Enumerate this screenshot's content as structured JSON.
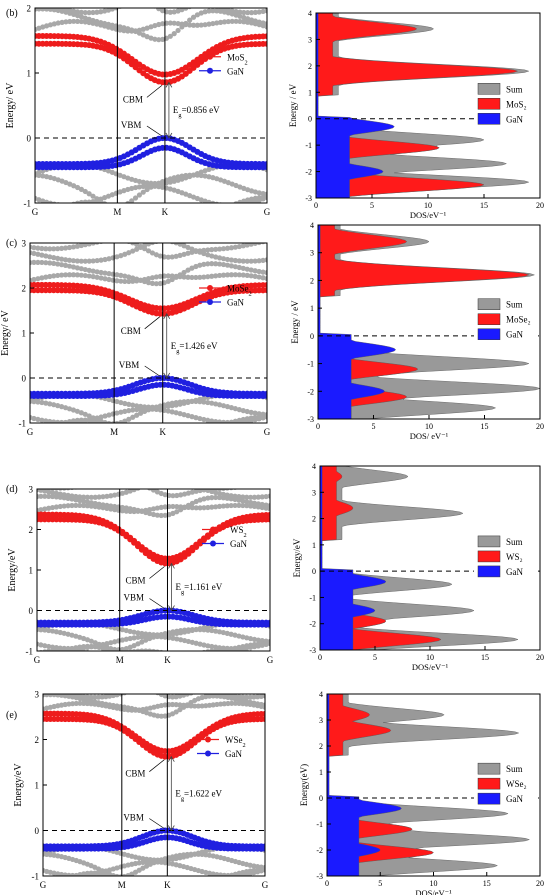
{
  "panels": [
    {
      "label": "(b)",
      "material": "MoS2",
      "band": {
        "ylim": [
          -1,
          2
        ],
        "yticks": [
          "-1",
          "0",
          "1",
          "2"
        ],
        "ylabel": "Energy/ eV",
        "kpoints": [
          "G",
          "M",
          "K",
          "G"
        ],
        "legend": [
          {
            "base": "MoS",
            "sub": "2"
          },
          {
            "base": "GaN",
            "sub": ""
          }
        ],
        "cbm_label": "CBM",
        "vbm_label": "VBM",
        "gap_label": {
          "pre": "E",
          "sub": "g",
          "post": "=0.856 eV"
        },
        "cb_min": 0.856,
        "cb_edge": 1.45,
        "vb_max": 0.0,
        "vb_low": -0.4
      },
      "dos": {
        "ylim": [
          -3,
          4
        ],
        "yticks": [
          "-3",
          "-2",
          "-1",
          "0",
          "1",
          "2",
          "3",
          "4"
        ],
        "xlim": [
          0,
          20
        ],
        "xticks": [
          "0",
          "5",
          "10",
          "15",
          "20"
        ],
        "ylabel": "Energy / eV",
        "xlabel": "DOS/eV⁻¹",
        "legend": [
          "Sum",
          "MoS₂",
          "GaN"
        ],
        "series_peaks": {
          "sum": [
            [
              3.4,
              10.5
            ],
            [
              1.8,
              19
            ],
            [
              -0.8,
              15
            ],
            [
              -1.7,
              17
            ],
            [
              -2.4,
              19
            ]
          ],
          "tmd": [
            [
              3.4,
              9
            ],
            [
              1.8,
              18
            ],
            [
              -1.1,
              11
            ],
            [
              -2.5,
              15
            ]
          ],
          "gan": [
            [
              -0.3,
              7
            ],
            [
              -2.0,
              6
            ]
          ]
        }
      }
    },
    {
      "label": "(c)",
      "material": "MoSe2",
      "band": {
        "ylim": [
          -1,
          3
        ],
        "yticks": [
          "-1",
          "0",
          "1",
          "2",
          "3"
        ],
        "ylabel": "Energy/ eV",
        "kpoints": [
          "G",
          "M",
          "K",
          "G"
        ],
        "legend": [
          {
            "base": "MoSe",
            "sub": "2"
          },
          {
            "base": "GaN",
            "sub": ""
          }
        ],
        "cbm_label": "CBM",
        "vbm_label": "VBM",
        "gap_label": {
          "pre": "E",
          "sub": "g",
          "post": "=1.426 eV"
        },
        "cb_min": 1.426,
        "cb_edge": 1.95,
        "vb_max": 0.0,
        "vb_low": -0.35
      },
      "dos": {
        "ylim": [
          -3,
          4
        ],
        "yticks": [
          "-3",
          "-2",
          "-1",
          "0",
          "1",
          "2",
          "3",
          "4"
        ],
        "xlim": [
          0,
          20
        ],
        "xticks": [
          "0",
          "5",
          "10",
          "15",
          "20"
        ],
        "ylabel": "Energy / eV",
        "xlabel": "DOS/ eV⁻¹",
        "legend": [
          "Sum",
          "MoSe₂",
          "GaN"
        ],
        "series_peaks": {
          "sum": [
            [
              3.4,
              10
            ],
            [
              2.2,
              19.5
            ],
            [
              -1.0,
              19
            ],
            [
              -1.9,
              20
            ],
            [
              -2.6,
              16
            ]
          ],
          "tmd": [
            [
              3.4,
              8
            ],
            [
              2.2,
              19
            ],
            [
              -1.2,
              9
            ],
            [
              -2.2,
              8
            ]
          ],
          "gan": [
            [
              -0.5,
              7
            ],
            [
              -2.0,
              6
            ]
          ]
        }
      }
    },
    {
      "label": "(d)",
      "material": "WS2",
      "band": {
        "ylim": [
          -1,
          3
        ],
        "yticks": [
          "-1",
          "0",
          "1",
          "2",
          "3"
        ],
        "ylabel": "Energy/eV",
        "kpoints": [
          "G",
          "M",
          "K",
          "G"
        ],
        "legend": [
          {
            "base": "WS",
            "sub": "2"
          },
          {
            "base": "GaN",
            "sub": ""
          }
        ],
        "cbm_label": "CBM",
        "vbm_label": "VBM",
        "gap_label": {
          "pre": "E",
          "sub": "g",
          "post": "=1.161 eV"
        },
        "cb_min": 1.161,
        "cb_edge": 2.25,
        "vb_max": 0.0,
        "vb_low": -0.3
      },
      "dos": {
        "ylim": [
          -3,
          4
        ],
        "yticks": [
          "-3",
          "-2",
          "-1",
          "0",
          "1",
          "2",
          "3",
          "4"
        ],
        "xlim": [
          0,
          20
        ],
        "xticks": [
          "0",
          "5",
          "10",
          "15",
          "20"
        ],
        "ylabel": "Energy/eV",
        "xlabel": "DOS/eV⁻¹",
        "legend": [
          "Sum",
          "WS₂",
          "GaN"
        ],
        "series_peaks": {
          "sum": [
            [
              3.6,
              8
            ],
            [
              2.2,
              13
            ],
            [
              -0.5,
              12
            ],
            [
              -1.5,
              14
            ],
            [
              -2.6,
              18
            ]
          ],
          "tmd": [
            [
              3.6,
              2
            ],
            [
              2.4,
              3
            ],
            [
              -1.9,
              6
            ],
            [
              -2.6,
              11
            ]
          ],
          "gan": [
            [
              -0.4,
              6
            ],
            [
              -1.5,
              5
            ]
          ]
        }
      }
    },
    {
      "label": "(e)",
      "material": "WSe2",
      "band": {
        "ylim": [
          -1,
          3
        ],
        "yticks": [
          "-1",
          "0",
          "1",
          "2",
          "3"
        ],
        "ylabel": "Energy/eV",
        "kpoints": [
          "G",
          "M",
          "K",
          "G"
        ],
        "legend": [
          {
            "base": "WSe",
            "sub": "2"
          },
          {
            "base": "GaN",
            "sub": ""
          }
        ],
        "cbm_label": "CBM",
        "vbm_label": "VBM",
        "gap_label": {
          "pre": "E",
          "sub": "g",
          "post": "=1.622 eV"
        },
        "cb_min": 1.622,
        "cb_edge": 2.45,
        "vb_max": 0.0,
        "vb_low": -0.35
      },
      "dos": {
        "ylim": [
          -3,
          4
        ],
        "yticks": [
          "-3",
          "-2",
          "-1",
          "0",
          "1",
          "2",
          "3",
          "4"
        ],
        "xlim": [
          0,
          20
        ],
        "xticks": [
          "0",
          "5",
          "10",
          "15",
          "20"
        ],
        "ylabel": "Energy(eV)",
        "xlabel": "DOS/eV⁻¹",
        "legend": [
          "Sum",
          "WSe₂",
          "GaN"
        ],
        "series_peaks": {
          "sum": [
            [
              3.2,
              11
            ],
            [
              2.5,
              18
            ],
            [
              -0.6,
              17
            ],
            [
              -1.6,
              19
            ],
            [
              -2.6,
              16
            ]
          ],
          "tmd": [
            [
              3.2,
              4
            ],
            [
              2.6,
              6
            ],
            [
              -1.2,
              8
            ],
            [
              -2.1,
              10
            ]
          ],
          "gan": [
            [
              -0.4,
              7
            ],
            [
              -2.0,
              5
            ]
          ]
        }
      }
    }
  ],
  "colors": {
    "sum": "#999999",
    "tmd": "#ff1a1a",
    "gan": "#1a1aff",
    "grey": "#a8a8a8",
    "red": "#ee1c1c",
    "blue": "#2020e0"
  },
  "chart_data": [
    {
      "type": "line",
      "title": "",
      "xlabel": "",
      "ylabel": "Energy/ eV",
      "ylim": [
        -1,
        2
      ],
      "x": [
        "G",
        "M",
        "K",
        "G"
      ],
      "series": [
        {
          "name": "MoS2"
        },
        {
          "name": "GaN"
        }
      ],
      "annotations": [
        "CBM",
        "VBM",
        "Eg=0.856 eV"
      ]
    },
    {
      "type": "area",
      "title": "",
      "xlabel": "DOS/eV-1",
      "ylabel": "Energy / eV",
      "ylim": [
        -3,
        4
      ],
      "xlim": [
        0,
        20
      ],
      "series": [
        {
          "name": "Sum"
        },
        {
          "name": "MoS2"
        },
        {
          "name": "GaN"
        }
      ]
    },
    {
      "type": "line",
      "title": "",
      "xlabel": "",
      "ylabel": "Energy/ eV",
      "ylim": [
        -1,
        3
      ],
      "x": [
        "G",
        "M",
        "K",
        "G"
      ],
      "series": [
        {
          "name": "MoSe2"
        },
        {
          "name": "GaN"
        }
      ],
      "annotations": [
        "CBM",
        "VBM",
        "Eg=1.426 eV"
      ]
    },
    {
      "type": "area",
      "title": "",
      "xlabel": "DOS/ eV-1",
      "ylabel": "Energy / eV",
      "ylim": [
        -3,
        4
      ],
      "xlim": [
        0,
        20
      ],
      "series": [
        {
          "name": "Sum"
        },
        {
          "name": "MoSe2"
        },
        {
          "name": "GaN"
        }
      ]
    },
    {
      "type": "line",
      "title": "",
      "xlabel": "",
      "ylabel": "Energy/eV",
      "ylim": [
        -1,
        3
      ],
      "x": [
        "G",
        "M",
        "K",
        "G"
      ],
      "series": [
        {
          "name": "WS2"
        },
        {
          "name": "GaN"
        }
      ],
      "annotations": [
        "CBM",
        "VBM",
        "Eg=1.161 eV"
      ]
    },
    {
      "type": "area",
      "title": "",
      "xlabel": "DOS/eV-1",
      "ylabel": "Energy/eV",
      "ylim": [
        -3,
        4
      ],
      "xlim": [
        0,
        20
      ],
      "series": [
        {
          "name": "Sum"
        },
        {
          "name": "WS2"
        },
        {
          "name": "GaN"
        }
      ]
    },
    {
      "type": "line",
      "title": "",
      "xlabel": "",
      "ylabel": "Energy/eV",
      "ylim": [
        -1,
        3
      ],
      "x": [
        "G",
        "M",
        "K",
        "G"
      ],
      "series": [
        {
          "name": "WSe2"
        },
        {
          "name": "GaN"
        }
      ],
      "annotations": [
        "CBM",
        "VBM",
        "Eg=1.622 eV"
      ]
    },
    {
      "type": "area",
      "title": "",
      "xlabel": "DOS/eV-1",
      "ylabel": "Energy(eV)",
      "ylim": [
        -3,
        4
      ],
      "xlim": [
        0,
        20
      ],
      "series": [
        {
          "name": "Sum"
        },
        {
          "name": "WSe2"
        },
        {
          "name": "GaN"
        }
      ]
    }
  ]
}
